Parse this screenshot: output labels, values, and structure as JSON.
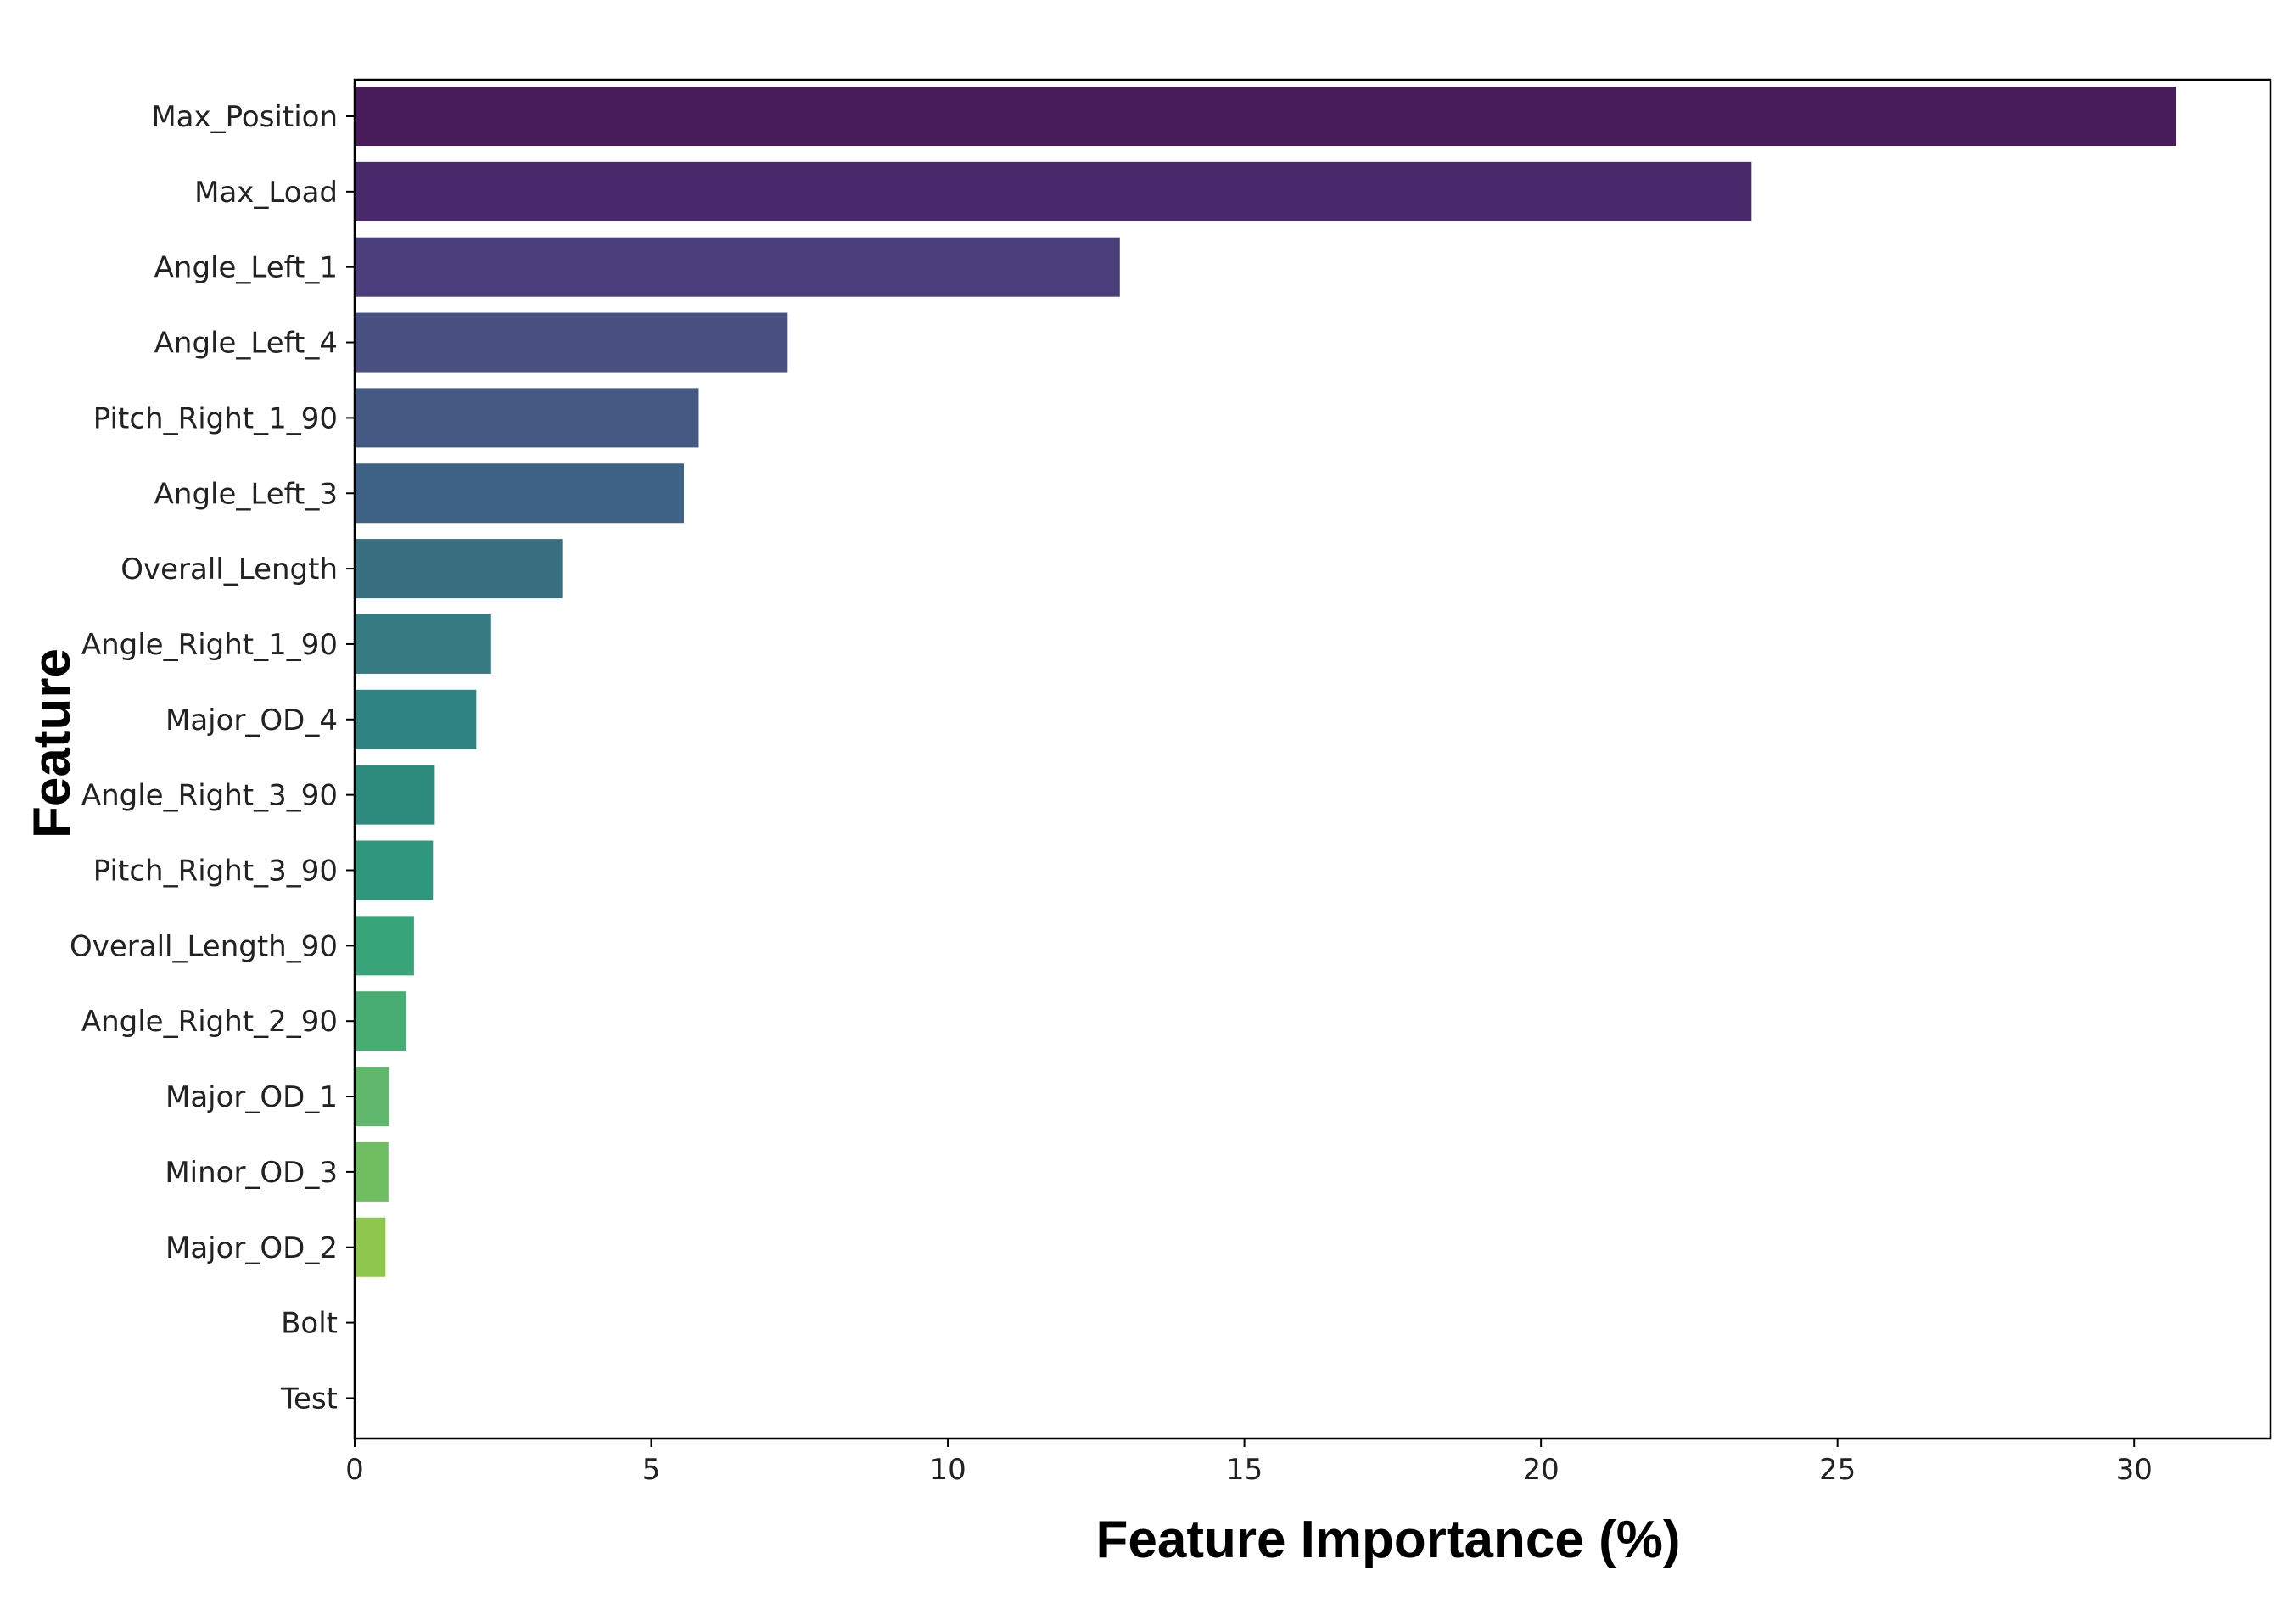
{
  "chart_data": {
    "type": "bar",
    "orientation": "horizontal",
    "categories": [
      "Max_Position",
      "Max_Load",
      "Angle_Left_1",
      "Angle_Left_4",
      "Pitch_Right_1_90",
      "Angle_Left_3",
      "Overall_Length",
      "Angle_Right_1_90",
      "Major_OD_4",
      "Angle_Right_3_90",
      "Pitch_Right_3_90",
      "Overall_Length_90",
      "Angle_Right_2_90",
      "Major_OD_1",
      "Minor_OD_3",
      "Major_OD_2",
      "Bolt",
      "Test"
    ],
    "values": [
      30.7,
      23.55,
      12.9,
      7.3,
      5.8,
      5.55,
      3.5,
      2.3,
      2.05,
      1.35,
      1.32,
      1.0,
      0.87,
      0.58,
      0.57,
      0.52,
      0,
      0
    ],
    "colors": [
      "#481b5b",
      "#48296b",
      "#4a3e7c",
      "#484f81",
      "#455a82",
      "#3e6286",
      "#386f81",
      "#357b81",
      "#2f8380",
      "#2c8b7c",
      "#2e977c",
      "#37a479",
      "#48ad73",
      "#5fb86c",
      "#6fbe60",
      "#8ec64e",
      "#9ccb47",
      "#a8d040"
    ],
    "xlabel": "Feature Importance (%)",
    "ylabel": "Feature",
    "xlim": [
      0,
      32.3
    ],
    "xticks": [
      0,
      5,
      10,
      15,
      20,
      25,
      30
    ],
    "grid": false,
    "legend": "none"
  }
}
